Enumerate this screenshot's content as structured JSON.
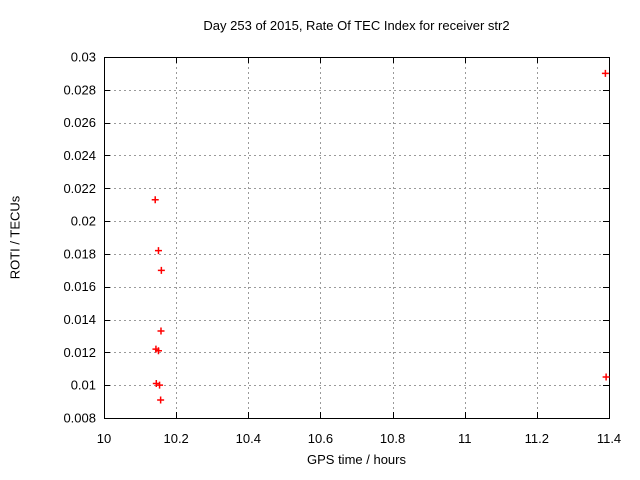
{
  "header": {
    "title": "Day 253 of 2015, Rate Of TEC Index for receiver str2"
  },
  "colors": {
    "background": "#ffffff",
    "border": "#000000",
    "grid": "#9a9a9a",
    "text": "#000000",
    "marker": "#ff0000"
  },
  "chart_data": {
    "type": "scatter",
    "title": "Day 253 of 2015, Rate Of TEC Index for receiver str2",
    "xlabel": "GPS time / hours",
    "ylabel": "ROTI / TECUs",
    "xlim": [
      10,
      11.4
    ],
    "ylim": [
      0.008,
      0.03
    ],
    "grid": true,
    "grid_style": "dashed",
    "legend": "none",
    "marker": "plus",
    "marker_color": "#ff0000",
    "xticks": [
      {
        "value": 10,
        "label": "10"
      },
      {
        "value": 10.2,
        "label": "10.2"
      },
      {
        "value": 10.4,
        "label": "10.4"
      },
      {
        "value": 10.6,
        "label": "10.6"
      },
      {
        "value": 10.8,
        "label": "10.8"
      },
      {
        "value": 11,
        "label": "11"
      },
      {
        "value": 11.2,
        "label": "11.2"
      },
      {
        "value": 11.4,
        "label": "11.4"
      }
    ],
    "yticks": [
      {
        "value": 0.008,
        "label": "0.008"
      },
      {
        "value": 0.01,
        "label": "0.01"
      },
      {
        "value": 0.012,
        "label": "0.012"
      },
      {
        "value": 0.014,
        "label": "0.014"
      },
      {
        "value": 0.016,
        "label": "0.016"
      },
      {
        "value": 0.018,
        "label": "0.018"
      },
      {
        "value": 0.02,
        "label": "0.02"
      },
      {
        "value": 0.022,
        "label": "0.022"
      },
      {
        "value": 0.024,
        "label": "0.024"
      },
      {
        "value": 0.026,
        "label": "0.026"
      },
      {
        "value": 0.028,
        "label": "0.028"
      },
      {
        "value": 0.03,
        "label": "0.03"
      }
    ],
    "series": [
      {
        "points": [
          {
            "x": 10.142,
            "y": 0.0213
          },
          {
            "x": 10.151,
            "y": 0.0182
          },
          {
            "x": 10.159,
            "y": 0.017
          },
          {
            "x": 10.158,
            "y": 0.0133
          },
          {
            "x": 10.144,
            "y": 0.0122
          },
          {
            "x": 10.151,
            "y": 0.0121
          },
          {
            "x": 10.145,
            "y": 0.0101
          },
          {
            "x": 10.154,
            "y": 0.01
          },
          {
            "x": 10.157,
            "y": 0.0091
          },
          {
            "x": 11.39,
            "y": 0.029
          },
          {
            "x": 11.392,
            "y": 0.0105
          }
        ]
      }
    ]
  }
}
